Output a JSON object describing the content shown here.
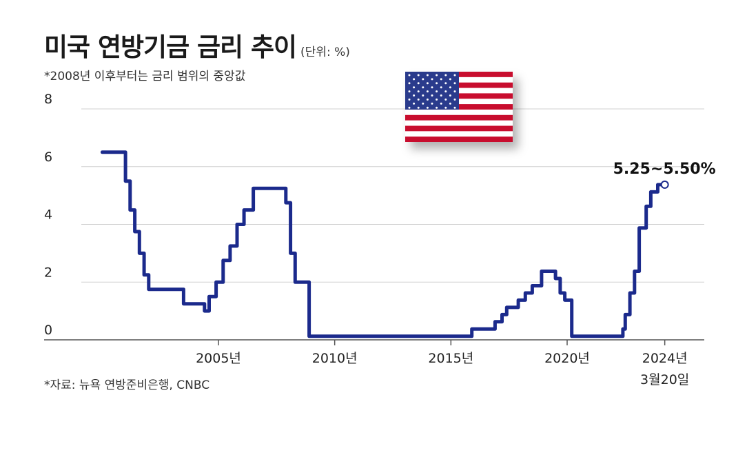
{
  "header": {
    "title": "미국 연방기금 금리 추이",
    "unit": "(단위: %)",
    "subtitle": "*2008년 이후부터는 금리 범위의 중앙값"
  },
  "footer": {
    "source": "*자료: 뉴욕 연방준비은행, CNBC"
  },
  "icons": {
    "flag": "us-flag-icon"
  },
  "colors": {
    "line": "#1b2a8c",
    "grid": "#d0d0d0",
    "axis": "#555555"
  },
  "chart_data": {
    "type": "line",
    "title": "미국 연방기금 금리 추이",
    "ylim": [
      0,
      8
    ],
    "xlim": [
      1999.1,
      2025.9
    ],
    "grid": true,
    "y_ticks": [
      0,
      2,
      4,
      6,
      8
    ],
    "x_ticks": [
      {
        "value": 2005,
        "label": "2005년"
      },
      {
        "value": 2010,
        "label": "2010년"
      },
      {
        "value": 2015,
        "label": "2015년"
      },
      {
        "value": 2020,
        "label": "2020년"
      },
      {
        "value": 2024.2,
        "label": "2024년",
        "sublabel": "3월20일"
      }
    ],
    "annotation": {
      "text": "5.25~5.50%",
      "x": 2024.2,
      "y": 5.375
    },
    "series": [
      {
        "x": [
          2000.0,
          2000.7,
          2001.0,
          2001.2,
          2001.4,
          2001.6,
          2001.8,
          2002.0,
          2002.9,
          2003.5,
          2004.4,
          2004.6,
          2004.9,
          2005.2,
          2005.5,
          2005.8,
          2006.1,
          2006.5,
          2007.7,
          2007.9,
          2008.1,
          2008.3,
          2008.8,
          2008.9,
          2015.9,
          2016.9,
          2017.2,
          2017.4,
          2017.9,
          2018.2,
          2018.5,
          2018.9,
          2019.5,
          2019.7,
          2019.9,
          2020.2,
          2022.2,
          2022.4,
          2022.5,
          2022.7,
          2022.9,
          2023.1,
          2023.4,
          2023.6,
          2023.9,
          2024.2
        ],
        "y": [
          6.5,
          6.5,
          5.5,
          4.5,
          3.75,
          3.0,
          2.25,
          1.75,
          1.75,
          1.25,
          1.0,
          1.5,
          2.0,
          2.75,
          3.25,
          4.0,
          4.5,
          5.25,
          5.25,
          4.75,
          3.0,
          2.0,
          2.0,
          0.125,
          0.375,
          0.625,
          0.875,
          1.125,
          1.375,
          1.625,
          1.875,
          2.375,
          2.125,
          1.625,
          1.375,
          0.125,
          0.125,
          0.375,
          0.875,
          1.625,
          2.375,
          3.875,
          4.625,
          5.125,
          5.375,
          5.375
        ]
      }
    ]
  }
}
